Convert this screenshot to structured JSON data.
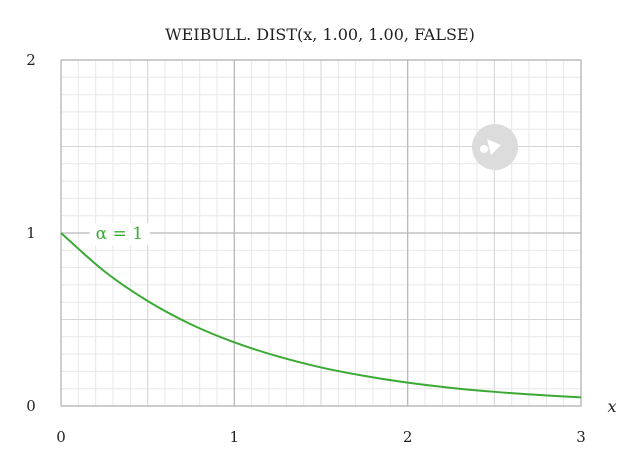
{
  "chart_data": {
    "type": "line",
    "title": "WEIBULL. DIST(x, 1.00, 1.00, FALSE)",
    "xlabel": "x",
    "ylabel": "",
    "xlim": [
      0,
      3
    ],
    "ylim": [
      0,
      2
    ],
    "x_ticks": [
      "0",
      "1",
      "2",
      "3"
    ],
    "y_ticks": [
      "0",
      "1",
      "2"
    ],
    "grid": true,
    "series": [
      {
        "name": "α = 1",
        "color": "#3aaa35",
        "x": [
          0,
          0.25,
          0.5,
          0.75,
          1,
          1.25,
          1.5,
          1.75,
          2,
          2.25,
          2.5,
          2.75,
          3
        ],
        "y": [
          1,
          0.779,
          0.607,
          0.472,
          0.368,
          0.287,
          0.223,
          0.174,
          0.135,
          0.105,
          0.082,
          0.064,
          0.05
        ]
      }
    ],
    "watermark": "geogebra-logo-icon"
  }
}
